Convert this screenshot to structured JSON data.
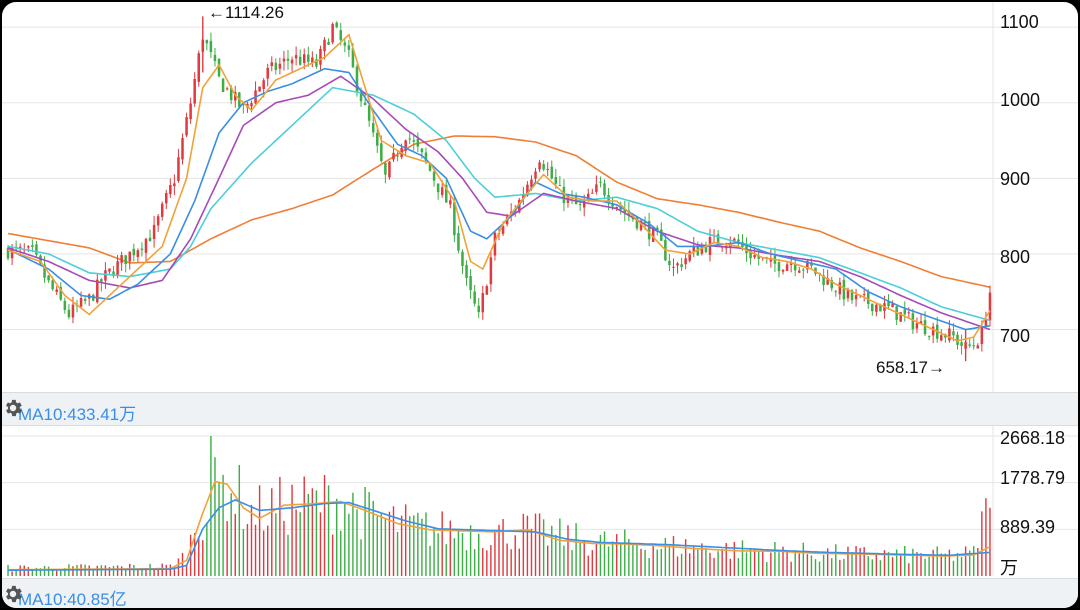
{
  "colors": {
    "up": "#e0393e",
    "down": "#3cae45",
    "ma5": "#f0a23a",
    "ma10": "#3a8ee6",
    "ma20": "#a64ab8",
    "ma30": "#4bcfd9",
    "ma60": "#f07f36",
    "vol_ma_a": "#f0a23a",
    "vol_ma_b": "#3a8ee6",
    "grid": "#e5e5e5"
  },
  "icons": {
    "settings": "gear-icon"
  },
  "main_panel": {
    "y_ticks": [
      "1100",
      "1000",
      "900",
      "800",
      "700"
    ],
    "high_label": "←1114.26",
    "low_label": "658.17→"
  },
  "indicator_bar": {
    "label": "MA10:433.41万"
  },
  "volume_panel": {
    "y_ticks": [
      "2668.18",
      "1778.79",
      "889.39"
    ],
    "unit": "万"
  },
  "bottom_bar": {
    "label": "MA10:40.85亿"
  },
  "chart_data": {
    "type": "candlestick",
    "price_range": [
      620,
      1120
    ],
    "volume_range": [
      0,
      2668.18
    ],
    "grid": true,
    "high": 1114.26,
    "low": 658.17,
    "price_path": [
      [
        0,
        805
      ],
      [
        6,
        800
      ],
      [
        10,
        760
      ],
      [
        15,
        720
      ],
      [
        20,
        740
      ],
      [
        24,
        770
      ],
      [
        30,
        800
      ],
      [
        36,
        830
      ],
      [
        41,
        900
      ],
      [
        45,
        1000
      ],
      [
        48,
        1090
      ],
      [
        52,
        1030
      ],
      [
        58,
        990
      ],
      [
        64,
        1040
      ],
      [
        70,
        1060
      ],
      [
        76,
        1050
      ],
      [
        80,
        1100
      ],
      [
        84,
        1060
      ],
      [
        88,
        990
      ],
      [
        93,
        900
      ],
      [
        98,
        960
      ],
      [
        103,
        920
      ],
      [
        109,
        860
      ],
      [
        113,
        760
      ],
      [
        116,
        715
      ],
      [
        120,
        820
      ],
      [
        126,
        870
      ],
      [
        131,
        930
      ],
      [
        136,
        880
      ],
      [
        141,
        860
      ],
      [
        146,
        890
      ],
      [
        151,
        860
      ],
      [
        156,
        840
      ],
      [
        160,
        820
      ],
      [
        164,
        780
      ],
      [
        168,
        800
      ],
      [
        173,
        815
      ],
      [
        178,
        820
      ],
      [
        183,
        800
      ],
      [
        188,
        785
      ],
      [
        193,
        790
      ],
      [
        198,
        780
      ],
      [
        203,
        760
      ],
      [
        208,
        740
      ],
      [
        213,
        735
      ],
      [
        218,
        725
      ],
      [
        223,
        710
      ],
      [
        228,
        700
      ],
      [
        233,
        690
      ],
      [
        236,
        675
      ],
      [
        238,
        680
      ],
      [
        240,
        695
      ],
      [
        242,
        750
      ]
    ],
    "ma_series": [
      {
        "key": "ma60",
        "points": [
          [
            0,
            827
          ],
          [
            20,
            808
          ],
          [
            30,
            788
          ],
          [
            40,
            790
          ],
          [
            50,
            820
          ],
          [
            60,
            845
          ],
          [
            70,
            860
          ],
          [
            80,
            878
          ],
          [
            90,
            912
          ],
          [
            100,
            945
          ],
          [
            110,
            956
          ],
          [
            120,
            955
          ],
          [
            130,
            948
          ],
          [
            140,
            930
          ],
          [
            150,
            895
          ],
          [
            160,
            873
          ],
          [
            170,
            865
          ],
          [
            180,
            855
          ],
          [
            190,
            842
          ],
          [
            200,
            830
          ],
          [
            210,
            808
          ],
          [
            220,
            790
          ],
          [
            230,
            770
          ],
          [
            242,
            756
          ]
        ]
      },
      {
        "key": "ma30",
        "points": [
          [
            0,
            810
          ],
          [
            10,
            800
          ],
          [
            20,
            775
          ],
          [
            30,
            770
          ],
          [
            40,
            780
          ],
          [
            45,
            810
          ],
          [
            50,
            860
          ],
          [
            60,
            920
          ],
          [
            70,
            970
          ],
          [
            80,
            1020
          ],
          [
            90,
            1010
          ],
          [
            100,
            985
          ],
          [
            108,
            950
          ],
          [
            115,
            900
          ],
          [
            120,
            875
          ],
          [
            130,
            880
          ],
          [
            140,
            870
          ],
          [
            150,
            875
          ],
          [
            160,
            860
          ],
          [
            170,
            830
          ],
          [
            180,
            815
          ],
          [
            190,
            805
          ],
          [
            200,
            795
          ],
          [
            210,
            775
          ],
          [
            220,
            755
          ],
          [
            230,
            730
          ],
          [
            242,
            712
          ]
        ]
      },
      {
        "key": "ma20",
        "points": [
          [
            0,
            808
          ],
          [
            10,
            790
          ],
          [
            20,
            765
          ],
          [
            30,
            755
          ],
          [
            38,
            765
          ],
          [
            45,
            820
          ],
          [
            52,
            900
          ],
          [
            58,
            970
          ],
          [
            66,
            1000
          ],
          [
            74,
            1010
          ],
          [
            82,
            1035
          ],
          [
            90,
            1005
          ],
          [
            98,
            965
          ],
          [
            106,
            935
          ],
          [
            112,
            900
          ],
          [
            118,
            855
          ],
          [
            124,
            850
          ],
          [
            132,
            880
          ],
          [
            140,
            870
          ],
          [
            150,
            860
          ],
          [
            160,
            830
          ],
          [
            170,
            812
          ],
          [
            180,
            808
          ],
          [
            190,
            798
          ],
          [
            200,
            790
          ],
          [
            210,
            770
          ],
          [
            220,
            745
          ],
          [
            230,
            722
          ],
          [
            242,
            700
          ]
        ]
      },
      {
        "key": "ma10",
        "points": [
          [
            0,
            806
          ],
          [
            10,
            780
          ],
          [
            18,
            745
          ],
          [
            25,
            740
          ],
          [
            32,
            760
          ],
          [
            40,
            800
          ],
          [
            46,
            870
          ],
          [
            52,
            960
          ],
          [
            58,
            1000
          ],
          [
            64,
            1015
          ],
          [
            70,
            1025
          ],
          [
            78,
            1045
          ],
          [
            84,
            1040
          ],
          [
            90,
            990
          ],
          [
            96,
            945
          ],
          [
            102,
            930
          ],
          [
            108,
            900
          ],
          [
            114,
            830
          ],
          [
            118,
            820
          ],
          [
            124,
            850
          ],
          [
            130,
            895
          ],
          [
            136,
            880
          ],
          [
            142,
            875
          ],
          [
            150,
            865
          ],
          [
            158,
            840
          ],
          [
            165,
            810
          ],
          [
            172,
            810
          ],
          [
            180,
            815
          ],
          [
            188,
            800
          ],
          [
            196,
            790
          ],
          [
            204,
            780
          ],
          [
            212,
            750
          ],
          [
            220,
            730
          ],
          [
            228,
            715
          ],
          [
            236,
            700
          ],
          [
            242,
            705
          ]
        ]
      },
      {
        "key": "ma5",
        "points": [
          [
            0,
            805
          ],
          [
            8,
            790
          ],
          [
            14,
            745
          ],
          [
            20,
            720
          ],
          [
            26,
            750
          ],
          [
            32,
            780
          ],
          [
            38,
            810
          ],
          [
            44,
            900
          ],
          [
            48,
            1020
          ],
          [
            52,
            1050
          ],
          [
            56,
            1010
          ],
          [
            60,
            990
          ],
          [
            66,
            1030
          ],
          [
            72,
            1045
          ],
          [
            78,
            1060
          ],
          [
            84,
            1090
          ],
          [
            88,
            1020
          ],
          [
            92,
            950
          ],
          [
            98,
            930
          ],
          [
            104,
            920
          ],
          [
            110,
            870
          ],
          [
            114,
            790
          ],
          [
            117,
            780
          ],
          [
            122,
            840
          ],
          [
            128,
            880
          ],
          [
            132,
            905
          ],
          [
            138,
            875
          ],
          [
            144,
            870
          ],
          [
            150,
            870
          ],
          [
            156,
            840
          ],
          [
            162,
            805
          ],
          [
            168,
            800
          ],
          [
            174,
            815
          ],
          [
            180,
            810
          ],
          [
            186,
            795
          ],
          [
            192,
            790
          ],
          [
            198,
            780
          ],
          [
            204,
            760
          ],
          [
            210,
            745
          ],
          [
            216,
            730
          ],
          [
            222,
            715
          ],
          [
            228,
            700
          ],
          [
            234,
            685
          ],
          [
            238,
            690
          ],
          [
            242,
            725
          ]
        ]
      }
    ],
    "volume_profile": [
      [
        0,
        150
      ],
      [
        40,
        180
      ],
      [
        44,
        400
      ],
      [
        46,
        900
      ],
      [
        50,
        1500
      ],
      [
        54,
        1800
      ],
      [
        60,
        1200
      ],
      [
        66,
        1300
      ],
      [
        74,
        1400
      ],
      [
        82,
        1450
      ],
      [
        88,
        1200
      ],
      [
        96,
        1000
      ],
      [
        104,
        900
      ],
      [
        112,
        850
      ],
      [
        120,
        820
      ],
      [
        128,
        880
      ],
      [
        136,
        760
      ],
      [
        144,
        650
      ],
      [
        152,
        620
      ],
      [
        160,
        580
      ],
      [
        170,
        540
      ],
      [
        180,
        500
      ],
      [
        190,
        470
      ],
      [
        200,
        430
      ],
      [
        210,
        410
      ],
      [
        220,
        400
      ],
      [
        230,
        390
      ],
      [
        238,
        420
      ],
      [
        240,
        1000
      ],
      [
        242,
        1300
      ]
    ],
    "vol_ma_series": [
      {
        "key": "vol_ma_a",
        "points": [
          [
            0,
            120
          ],
          [
            40,
            140
          ],
          [
            44,
            300
          ],
          [
            48,
            1200
          ],
          [
            51,
            1800
          ],
          [
            54,
            1750
          ],
          [
            58,
            1300
          ],
          [
            62,
            1100
          ],
          [
            68,
            1350
          ],
          [
            76,
            1380
          ],
          [
            82,
            1420
          ],
          [
            88,
            1250
          ],
          [
            96,
            1000
          ],
          [
            104,
            880
          ],
          [
            112,
            860
          ],
          [
            120,
            840
          ],
          [
            128,
            880
          ],
          [
            136,
            680
          ],
          [
            144,
            620
          ],
          [
            152,
            610
          ],
          [
            160,
            580
          ],
          [
            170,
            520
          ],
          [
            180,
            480
          ],
          [
            190,
            470
          ],
          [
            200,
            430
          ],
          [
            210,
            420
          ],
          [
            220,
            400
          ],
          [
            230,
            380
          ],
          [
            238,
            400
          ],
          [
            242,
            560
          ]
        ]
      },
      {
        "key": "vol_ma_b",
        "points": [
          [
            0,
            110
          ],
          [
            40,
            130
          ],
          [
            44,
            200
          ],
          [
            48,
            900
          ],
          [
            52,
            1300
          ],
          [
            56,
            1450
          ],
          [
            62,
            1250
          ],
          [
            70,
            1300
          ],
          [
            78,
            1380
          ],
          [
            84,
            1400
          ],
          [
            90,
            1250
          ],
          [
            98,
            1050
          ],
          [
            106,
            900
          ],
          [
            114,
            880
          ],
          [
            122,
            860
          ],
          [
            130,
            840
          ],
          [
            138,
            700
          ],
          [
            146,
            640
          ],
          [
            154,
            620
          ],
          [
            162,
            600
          ],
          [
            172,
            560
          ],
          [
            182,
            520
          ],
          [
            192,
            480
          ],
          [
            202,
            450
          ],
          [
            212,
            430
          ],
          [
            222,
            410
          ],
          [
            232,
            395
          ],
          [
            242,
            450
          ]
        ]
      }
    ]
  }
}
